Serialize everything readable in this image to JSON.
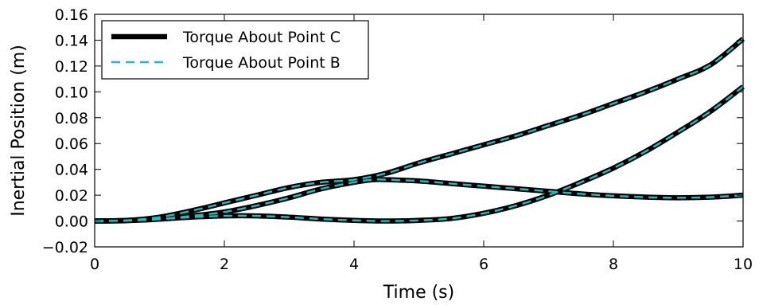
{
  "chart_data": {
    "type": "line",
    "title": "",
    "xlabel": "Time (s)",
    "ylabel": "Inertial Position (m)",
    "xlim": [
      0,
      10
    ],
    "ylim": [
      -0.02,
      0.16
    ],
    "xticks": [
      0,
      2,
      4,
      6,
      8,
      10
    ],
    "xtick_labels": [
      "0",
      "2",
      "4",
      "6",
      "8",
      "10"
    ],
    "yticks": [
      -0.02,
      0.0,
      0.02,
      0.04,
      0.06,
      0.08,
      0.1,
      0.12,
      0.14,
      0.16
    ],
    "ytick_labels": [
      "−0.02",
      "0.00",
      "0.02",
      "0.04",
      "0.06",
      "0.08",
      "0.10",
      "0.12",
      "0.14",
      "0.16"
    ],
    "grid": false,
    "legend_position": "top-left",
    "legend": [
      {
        "label": "Torque About Point C",
        "color": "#000000",
        "style": "solid-thick"
      },
      {
        "label": "Torque About Point B",
        "color": "#1fbfbf",
        "style": "dashed"
      }
    ],
    "series": [
      {
        "name": "Torque About Point C",
        "color": "#000000",
        "curves": [
          {
            "x": [
              0,
              0.5,
              1,
              1.5,
              2,
              2.5,
              3,
              3.5,
              4,
              4.5,
              5,
              5.5,
              6,
              6.5,
              7,
              7.5,
              8,
              8.5,
              9,
              9.5,
              10
            ],
            "y": [
              0.0,
              0.0005,
              0.003,
              0.008,
              0.014,
              0.02,
              0.026,
              0.03,
              0.032,
              0.037,
              0.045,
              0.052,
              0.059,
              0.066,
              0.074,
              0.082,
              0.091,
              0.1,
              0.11,
              0.121,
              0.141
            ]
          },
          {
            "x": [
              0,
              0.5,
              1,
              1.5,
              2,
              2.5,
              3,
              3.5,
              4,
              4.3,
              4.5,
              5,
              5.5,
              6,
              6.5,
              7,
              7.5,
              8,
              8.5,
              9,
              9.5,
              10
            ],
            "y": [
              0.0,
              0.0003,
              0.0015,
              0.004,
              0.007,
              0.012,
              0.018,
              0.025,
              0.03,
              0.032,
              0.032,
              0.031,
              0.029,
              0.027,
              0.025,
              0.023,
              0.021,
              0.0195,
              0.0185,
              0.018,
              0.0185,
              0.02
            ]
          },
          {
            "x": [
              0,
              0.5,
              1,
              1.5,
              2,
              2.5,
              3,
              3.5,
              4,
              4.5,
              5,
              5.5,
              6,
              6.5,
              7,
              7.5,
              8,
              8.5,
              9,
              9.5,
              10
            ],
            "y": [
              0.0,
              0.0005,
              0.0015,
              0.003,
              0.004,
              0.004,
              0.003,
              0.0015,
              0.0005,
              0.0,
              0.0005,
              0.002,
              0.006,
              0.012,
              0.02,
              0.03,
              0.041,
              0.054,
              0.069,
              0.085,
              0.104
            ]
          }
        ]
      },
      {
        "name": "Torque About Point B",
        "color": "#1fbfbf",
        "curves": [
          {
            "x": [
              0,
              0.5,
              1,
              1.5,
              2,
              2.5,
              3,
              3.5,
              4,
              4.5,
              5,
              5.5,
              6,
              6.5,
              7,
              7.5,
              8,
              8.5,
              9,
              9.5,
              10
            ],
            "y": [
              0.0,
              0.0005,
              0.003,
              0.008,
              0.014,
              0.02,
              0.026,
              0.03,
              0.032,
              0.037,
              0.045,
              0.052,
              0.059,
              0.066,
              0.074,
              0.082,
              0.091,
              0.1,
              0.11,
              0.121,
              0.141
            ]
          },
          {
            "x": [
              0,
              0.5,
              1,
              1.5,
              2,
              2.5,
              3,
              3.5,
              4,
              4.3,
              4.5,
              5,
              5.5,
              6,
              6.5,
              7,
              7.5,
              8,
              8.5,
              9,
              9.5,
              10
            ],
            "y": [
              0.0,
              0.0003,
              0.0015,
              0.004,
              0.007,
              0.012,
              0.018,
              0.025,
              0.03,
              0.032,
              0.032,
              0.031,
              0.029,
              0.027,
              0.025,
              0.023,
              0.021,
              0.0195,
              0.0185,
              0.018,
              0.0185,
              0.02
            ]
          },
          {
            "x": [
              0,
              0.5,
              1,
              1.5,
              2,
              2.5,
              3,
              3.5,
              4,
              4.5,
              5,
              5.5,
              6,
              6.5,
              7,
              7.5,
              8,
              8.5,
              9,
              9.5,
              10
            ],
            "y": [
              0.0,
              0.0005,
              0.0015,
              0.003,
              0.004,
              0.004,
              0.003,
              0.0015,
              0.0005,
              0.0,
              0.0005,
              0.002,
              0.006,
              0.012,
              0.02,
              0.03,
              0.041,
              0.054,
              0.069,
              0.085,
              0.104
            ]
          }
        ]
      }
    ]
  }
}
